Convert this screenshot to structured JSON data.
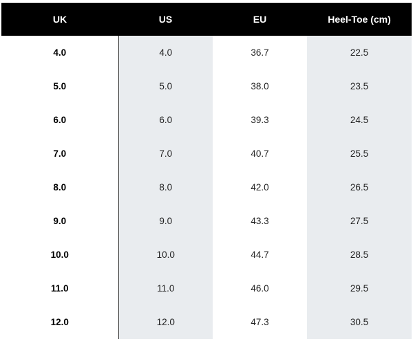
{
  "table": {
    "headers": [
      "UK",
      "US",
      "EU",
      "Heel-Toe (cm)"
    ],
    "rows": [
      [
        "4.0",
        "4.0",
        "36.7",
        "22.5"
      ],
      [
        "5.0",
        "5.0",
        "38.0",
        "23.5"
      ],
      [
        "6.0",
        "6.0",
        "39.3",
        "24.5"
      ],
      [
        "7.0",
        "7.0",
        "40.7",
        "25.5"
      ],
      [
        "8.0",
        "8.0",
        "42.0",
        "26.5"
      ],
      [
        "9.0",
        "9.0",
        "43.3",
        "27.5"
      ],
      [
        "10.0",
        "10.0",
        "44.7",
        "28.5"
      ],
      [
        "11.0",
        "11.0",
        "46.0",
        "29.5"
      ],
      [
        "12.0",
        "12.0",
        "47.3",
        "30.5"
      ]
    ]
  },
  "colors": {
    "header_background": "#000000",
    "header_text": "#ffffff",
    "shaded_column": "#e9ecef"
  }
}
